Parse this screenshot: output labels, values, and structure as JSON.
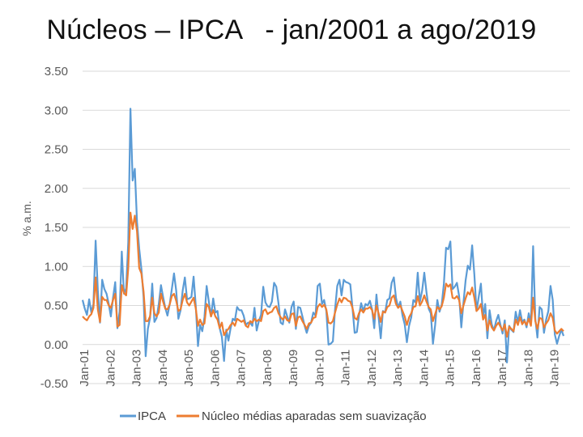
{
  "chart_data": {
    "type": "line",
    "title": "Núcleos – IPCA   - jan/2001 a ago/2019",
    "xlabel": "",
    "ylabel": "% a.m.",
    "ylim": [
      -0.5,
      3.5
    ],
    "yticks": [
      "3.50",
      "3.00",
      "2.50",
      "2.00",
      "1.50",
      "1.00",
      "0.50",
      "0.00",
      "-0.50"
    ],
    "ytick_values": [
      3.5,
      3.0,
      2.5,
      2.0,
      1.5,
      1.0,
      0.5,
      0.0,
      -0.5
    ],
    "x_tick_labels": [
      "Jan-01",
      "Jan-02",
      "Jan-03",
      "Jan-04",
      "Jan-05",
      "Jan-06",
      "Jan-07",
      "Jan-08",
      "Jan-09",
      "Jan-10",
      "Jan-11",
      "Jan-12",
      "Jan-13",
      "Jan-14",
      "Jan-15",
      "Jan-16",
      "Jan-17",
      "Jan-18",
      "Jan-19"
    ],
    "x_start": "2001-01",
    "x_end": "2019-08",
    "grid": true,
    "legend_position": "bottom",
    "series": [
      {
        "name": "IPCA",
        "color": "#5B9BD5",
        "values": [
          0.57,
          0.46,
          0.38,
          0.58,
          0.41,
          0.52,
          1.33,
          0.7,
          0.28,
          0.83,
          0.71,
          0.65,
          0.52,
          0.36,
          0.6,
          0.8,
          0.21,
          0.42,
          1.19,
          0.65,
          0.72,
          1.31,
          3.02,
          2.1,
          2.25,
          1.57,
          1.23,
          0.97,
          0.61,
          -0.15,
          0.2,
          0.34,
          0.78,
          0.29,
          0.34,
          0.52,
          0.76,
          0.61,
          0.47,
          0.37,
          0.51,
          0.71,
          0.91,
          0.69,
          0.33,
          0.44,
          0.69,
          0.86,
          0.58,
          0.59,
          0.61,
          0.87,
          0.49,
          -0.02,
          0.25,
          0.17,
          0.35,
          0.75,
          0.55,
          0.36,
          0.59,
          0.41,
          0.43,
          0.21,
          0.1,
          -0.21,
          0.19,
          0.05,
          0.21,
          0.33,
          0.31,
          0.48,
          0.44,
          0.44,
          0.37,
          0.25,
          0.28,
          0.28,
          0.24,
          0.47,
          0.18,
          0.3,
          0.38,
          0.74,
          0.54,
          0.49,
          0.48,
          0.55,
          0.79,
          0.74,
          0.53,
          0.28,
          0.26,
          0.45,
          0.36,
          0.28,
          0.48,
          0.55,
          0.2,
          0.48,
          0.47,
          0.36,
          0.24,
          0.15,
          0.24,
          0.28,
          0.41,
          0.37,
          0.75,
          0.78,
          0.52,
          0.57,
          0.43,
          0.0,
          0.01,
          0.04,
          0.45,
          0.75,
          0.83,
          0.63,
          0.83,
          0.8,
          0.79,
          0.77,
          0.47,
          0.15,
          0.16,
          0.37,
          0.53,
          0.43,
          0.52,
          0.5,
          0.56,
          0.45,
          0.21,
          0.64,
          0.36,
          0.08,
          0.43,
          0.41,
          0.57,
          0.59,
          0.79,
          0.86,
          0.6,
          0.47,
          0.55,
          0.37,
          0.26,
          0.03,
          0.24,
          0.35,
          0.57,
          0.54,
          0.92,
          0.55,
          0.69,
          0.92,
          0.67,
          0.46,
          0.4,
          0.01,
          0.25,
          0.57,
          0.42,
          0.51,
          0.78,
          1.24,
          1.22,
          1.32,
          0.71,
          0.74,
          0.79,
          0.62,
          0.22,
          0.54,
          0.82,
          1.01,
          0.96,
          1.27,
          0.9,
          0.43,
          0.61,
          0.78,
          0.35,
          0.52,
          0.08,
          0.44,
          0.26,
          0.18,
          0.3,
          0.38,
          0.25,
          0.14,
          0.31,
          -0.23,
          0.24,
          0.19,
          0.16,
          0.42,
          0.28,
          0.44,
          0.29,
          0.32,
          0.22,
          0.4,
          0.26,
          1.26,
          0.33,
          0.09,
          0.48,
          0.45,
          0.15,
          0.32,
          0.43,
          0.75,
          0.57,
          0.13,
          0.01,
          0.11,
          0.19,
          0.11
        ]
      },
      {
        "name": "Núcleo médias aparadas sem suavização",
        "color": "#ED7D31",
        "values": [
          0.36,
          0.33,
          0.31,
          0.36,
          0.39,
          0.47,
          0.86,
          0.45,
          0.29,
          0.61,
          0.57,
          0.57,
          0.5,
          0.47,
          0.57,
          0.65,
          0.23,
          0.25,
          0.76,
          0.66,
          0.63,
          0.98,
          1.69,
          1.48,
          1.65,
          1.45,
          0.98,
          0.91,
          0.68,
          0.3,
          0.3,
          0.36,
          0.6,
          0.4,
          0.36,
          0.41,
          0.65,
          0.55,
          0.46,
          0.45,
          0.51,
          0.62,
          0.65,
          0.56,
          0.43,
          0.45,
          0.57,
          0.65,
          0.54,
          0.5,
          0.55,
          0.6,
          0.46,
          0.24,
          0.32,
          0.25,
          0.27,
          0.52,
          0.48,
          0.36,
          0.44,
          0.36,
          0.32,
          0.21,
          0.28,
          0.12,
          0.17,
          0.2,
          0.25,
          0.28,
          0.24,
          0.33,
          0.31,
          0.29,
          0.31,
          0.24,
          0.22,
          0.3,
          0.28,
          0.33,
          0.3,
          0.32,
          0.3,
          0.43,
          0.45,
          0.39,
          0.41,
          0.42,
          0.47,
          0.49,
          0.4,
          0.35,
          0.32,
          0.36,
          0.31,
          0.3,
          0.39,
          0.4,
          0.24,
          0.35,
          0.36,
          0.3,
          0.25,
          0.2,
          0.27,
          0.28,
          0.34,
          0.35,
          0.48,
          0.52,
          0.48,
          0.51,
          0.45,
          0.28,
          0.27,
          0.3,
          0.41,
          0.51,
          0.59,
          0.54,
          0.6,
          0.59,
          0.56,
          0.55,
          0.47,
          0.34,
          0.32,
          0.4,
          0.45,
          0.41,
          0.46,
          0.46,
          0.48,
          0.44,
          0.33,
          0.5,
          0.4,
          0.29,
          0.42,
          0.41,
          0.48,
          0.5,
          0.6,
          0.63,
          0.52,
          0.47,
          0.5,
          0.43,
          0.36,
          0.25,
          0.35,
          0.4,
          0.48,
          0.49,
          0.62,
          0.5,
          0.55,
          0.63,
          0.55,
          0.48,
          0.45,
          0.3,
          0.39,
          0.48,
          0.45,
          0.49,
          0.6,
          0.78,
          0.74,
          0.77,
          0.6,
          0.59,
          0.62,
          0.57,
          0.4,
          0.5,
          0.59,
          0.67,
          0.64,
          0.73,
          0.6,
          0.43,
          0.46,
          0.52,
          0.32,
          0.38,
          0.18,
          0.31,
          0.22,
          0.18,
          0.24,
          0.28,
          0.23,
          0.18,
          0.26,
          0.1,
          0.23,
          0.2,
          0.17,
          0.32,
          0.25,
          0.35,
          0.26,
          0.3,
          0.25,
          0.33,
          0.24,
          0.6,
          0.3,
          0.2,
          0.34,
          0.33,
          0.22,
          0.27,
          0.31,
          0.4,
          0.34,
          0.18,
          0.14,
          0.17,
          0.2,
          0.17
        ]
      }
    ]
  }
}
